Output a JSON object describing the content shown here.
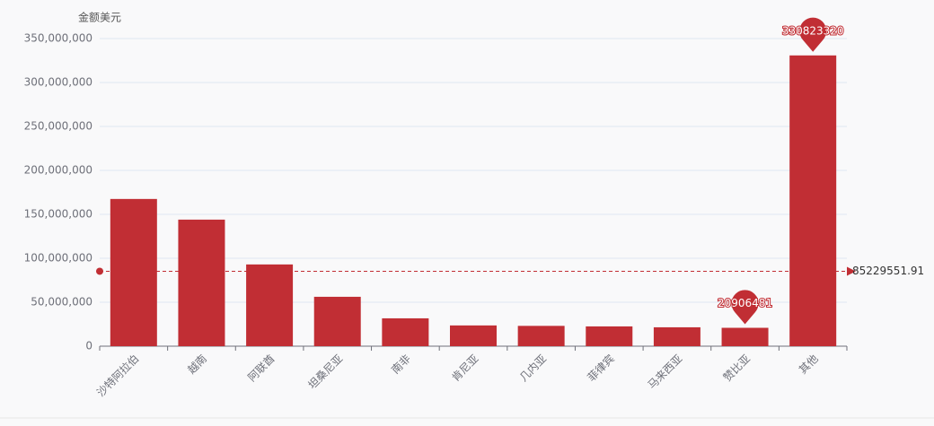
{
  "chart_data": {
    "type": "bar",
    "y_axis_name": "金额美元",
    "categories": [
      "沙特阿拉伯",
      "越南",
      "阿联酋",
      "坦桑尼亚",
      "南非",
      "肯尼亚",
      "几内亚",
      "菲律宾",
      "马来西亚",
      "赞比亚",
      "其他"
    ],
    "values": [
      167500000,
      144000000,
      93000000,
      56200000,
      31700000,
      23600000,
      23100000,
      22500000,
      21500000,
      20906481,
      330823320
    ],
    "color": "#c12e34",
    "ylim": [
      0,
      350000000
    ],
    "yticks": [
      0,
      {
        "value": 50000000,
        "label": "50,000,000"
      },
      {
        "value": 100000000,
        "label": "100,000,000"
      },
      {
        "value": 150000000,
        "label": "150,000,000"
      },
      {
        "value": 200000000,
        "label": "200,000,000"
      },
      {
        "value": 250000000,
        "label": "250,000,000"
      },
      {
        "value": 300000000,
        "label": "300,000,000"
      },
      {
        "value": 350000000,
        "label": "350,000,000"
      }
    ],
    "grid": true,
    "mark_points": [
      330823320,
      20906481
    ],
    "mark_line": 85229551.91
  }
}
